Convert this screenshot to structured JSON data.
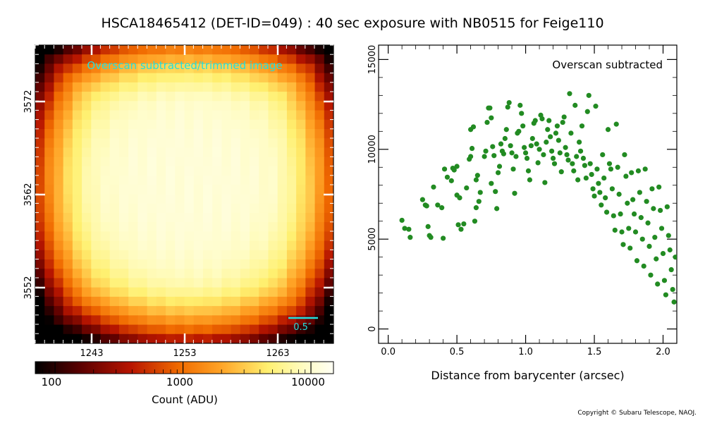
{
  "title": "HSCA18465412 (DET-ID=049) :  40 sec exposure with NB0515 for Feige110",
  "copyright": "Copyright © Subaru Telescope, NAOJ.",
  "chart_data": [
    {
      "type": "heatmap",
      "annotation": "Overscan subtracted/trimmed image",
      "x_ticks": [
        "1243",
        "1253",
        "1263"
      ],
      "y_ticks": [
        "3572",
        "3562",
        "3552"
      ],
      "scale_bar_label": "0.5″",
      "colorbar": {
        "scale": "log",
        "range": [
          70,
          15000
        ],
        "tick_labels": [
          "100",
          "1000",
          "10000"
        ],
        "label": "Count (ADU)"
      },
      "peak_adu": 11000,
      "background_adu": 100
    },
    {
      "type": "scatter",
      "annotation": "Overscan subtracted",
      "xlabel": "Distance from barycenter (arcsec)",
      "ylabel": "",
      "xlim": [
        -0.07,
        2.1
      ],
      "ylim": [
        -800,
        15800
      ],
      "x_ticks": [
        "0.0",
        "0.5",
        "1.0",
        "1.5",
        "2.0"
      ],
      "y_ticks": [
        "0",
        "5000",
        "10000",
        "15000"
      ],
      "point_color": "#228B22",
      "points": [
        [
          0.1,
          6050
        ],
        [
          0.12,
          5600
        ],
        [
          0.15,
          5550
        ],
        [
          0.16,
          5100
        ],
        [
          0.25,
          7200
        ],
        [
          0.27,
          6900
        ],
        [
          0.28,
          6850
        ],
        [
          0.29,
          5700
        ],
        [
          0.3,
          5200
        ],
        [
          0.31,
          5100
        ],
        [
          0.33,
          7900
        ],
        [
          0.36,
          6900
        ],
        [
          0.39,
          6750
        ],
        [
          0.4,
          5050
        ],
        [
          0.41,
          8900
        ],
        [
          0.43,
          8450
        ],
        [
          0.46,
          8250
        ],
        [
          0.47,
          8950
        ],
        [
          0.48,
          8850
        ],
        [
          0.5,
          9050
        ],
        [
          0.5,
          7450
        ],
        [
          0.52,
          7300
        ],
        [
          0.51,
          5800
        ],
        [
          0.53,
          5550
        ],
        [
          0.55,
          5850
        ],
        [
          0.57,
          7850
        ],
        [
          0.59,
          9450
        ],
        [
          0.6,
          9600
        ],
        [
          0.61,
          10050
        ],
        [
          0.6,
          11100
        ],
        [
          0.62,
          11250
        ],
        [
          0.64,
          8300
        ],
        [
          0.65,
          8550
        ],
        [
          0.66,
          7100
        ],
        [
          0.64,
          6750
        ],
        [
          0.63,
          6000
        ],
        [
          0.67,
          7600
        ],
        [
          0.7,
          9600
        ],
        [
          0.71,
          9900
        ],
        [
          0.72,
          11500
        ],
        [
          0.73,
          12300
        ],
        [
          0.74,
          12300
        ],
        [
          0.75,
          11750
        ],
        [
          0.76,
          10150
        ],
        [
          0.77,
          9650
        ],
        [
          0.75,
          8100
        ],
        [
          0.78,
          7650
        ],
        [
          0.8,
          8700
        ],
        [
          0.79,
          6700
        ],
        [
          0.81,
          9050
        ],
        [
          0.82,
          10300
        ],
        [
          0.83,
          9900
        ],
        [
          0.84,
          9750
        ],
        [
          0.85,
          10600
        ],
        [
          0.86,
          11100
        ],
        [
          0.87,
          12350
        ],
        [
          0.88,
          12600
        ],
        [
          0.89,
          10200
        ],
        [
          0.9,
          9800
        ],
        [
          0.91,
          8900
        ],
        [
          0.92,
          7550
        ],
        [
          0.93,
          9600
        ],
        [
          0.94,
          10900
        ],
        [
          0.95,
          11000
        ],
        [
          0.96,
          12450
        ],
        [
          0.97,
          12000
        ],
        [
          0.98,
          11300
        ],
        [
          0.99,
          10100
        ],
        [
          1.0,
          9800
        ],
        [
          1.01,
          9500
        ],
        [
          1.02,
          8800
        ],
        [
          1.03,
          8300
        ],
        [
          1.04,
          10200
        ],
        [
          1.05,
          10600
        ],
        [
          1.06,
          11450
        ],
        [
          1.07,
          11600
        ],
        [
          1.08,
          10300
        ],
        [
          1.09,
          9250
        ],
        [
          1.1,
          10000
        ],
        [
          1.11,
          11900
        ],
        [
          1.12,
          11700
        ],
        [
          1.13,
          9700
        ],
        [
          1.14,
          8150
        ],
        [
          1.15,
          10400
        ],
        [
          1.16,
          11100
        ],
        [
          1.17,
          11600
        ],
        [
          1.18,
          10700
        ],
        [
          1.19,
          9900
        ],
        [
          1.2,
          9500
        ],
        [
          1.21,
          9200
        ],
        [
          1.22,
          10900
        ],
        [
          1.23,
          11300
        ],
        [
          1.24,
          10500
        ],
        [
          1.25,
          9800
        ],
        [
          1.26,
          8750
        ],
        [
          1.27,
          11500
        ],
        [
          1.28,
          11800
        ],
        [
          1.29,
          10100
        ],
        [
          1.3,
          9700
        ],
        [
          1.31,
          9400
        ],
        [
          1.32,
          13100
        ],
        [
          1.33,
          10900
        ],
        [
          1.34,
          9200
        ],
        [
          1.35,
          8800
        ],
        [
          1.36,
          12450
        ],
        [
          1.37,
          9600
        ],
        [
          1.38,
          8300
        ],
        [
          1.39,
          10400
        ],
        [
          1.4,
          9900
        ],
        [
          1.41,
          11300
        ],
        [
          1.42,
          9500
        ],
        [
          1.43,
          9100
        ],
        [
          1.44,
          8400
        ],
        [
          1.45,
          12100
        ],
        [
          1.46,
          13000
        ],
        [
          1.47,
          9200
        ],
        [
          1.48,
          8600
        ],
        [
          1.49,
          7800
        ],
        [
          1.5,
          7400
        ],
        [
          1.51,
          12400
        ],
        [
          1.52,
          8900
        ],
        [
          1.53,
          8100
        ],
        [
          1.54,
          7600
        ],
        [
          1.55,
          6900
        ],
        [
          1.56,
          9700
        ],
        [
          1.57,
          8400
        ],
        [
          1.58,
          7300
        ],
        [
          1.59,
          6500
        ],
        [
          1.6,
          11100
        ],
        [
          1.61,
          9200
        ],
        [
          1.62,
          8900
        ],
        [
          1.63,
          7800
        ],
        [
          1.64,
          6300
        ],
        [
          1.65,
          5500
        ],
        [
          1.66,
          11400
        ],
        [
          1.67,
          9000
        ],
        [
          1.68,
          7500
        ],
        [
          1.69,
          6400
        ],
        [
          1.7,
          5400
        ],
        [
          1.71,
          4700
        ],
        [
          1.72,
          9700
        ],
        [
          1.73,
          8500
        ],
        [
          1.74,
          7000
        ],
        [
          1.75,
          5600
        ],
        [
          1.76,
          4500
        ],
        [
          1.77,
          8700
        ],
        [
          1.78,
          7200
        ],
        [
          1.79,
          6400
        ],
        [
          1.8,
          5400
        ],
        [
          1.81,
          3800
        ],
        [
          1.82,
          8800
        ],
        [
          1.83,
          7600
        ],
        [
          1.84,
          6200
        ],
        [
          1.85,
          5000
        ],
        [
          1.86,
          3500
        ],
        [
          1.87,
          8900
        ],
        [
          1.88,
          7100
        ],
        [
          1.89,
          5900
        ],
        [
          1.9,
          4600
        ],
        [
          1.91,
          3000
        ],
        [
          1.92,
          7800
        ],
        [
          1.93,
          6700
        ],
        [
          1.94,
          5100
        ],
        [
          1.95,
          3900
        ],
        [
          1.96,
          2500
        ],
        [
          1.97,
          7900
        ],
        [
          1.98,
          6600
        ],
        [
          1.99,
          5600
        ],
        [
          2.0,
          4200
        ],
        [
          2.01,
          2700
        ],
        [
          2.02,
          1900
        ],
        [
          2.03,
          6800
        ],
        [
          2.04,
          5200
        ],
        [
          2.05,
          4400
        ],
        [
          2.06,
          3300
        ],
        [
          2.07,
          2200
        ],
        [
          2.08,
          1500
        ],
        [
          2.09,
          4000
        ]
      ]
    }
  ]
}
